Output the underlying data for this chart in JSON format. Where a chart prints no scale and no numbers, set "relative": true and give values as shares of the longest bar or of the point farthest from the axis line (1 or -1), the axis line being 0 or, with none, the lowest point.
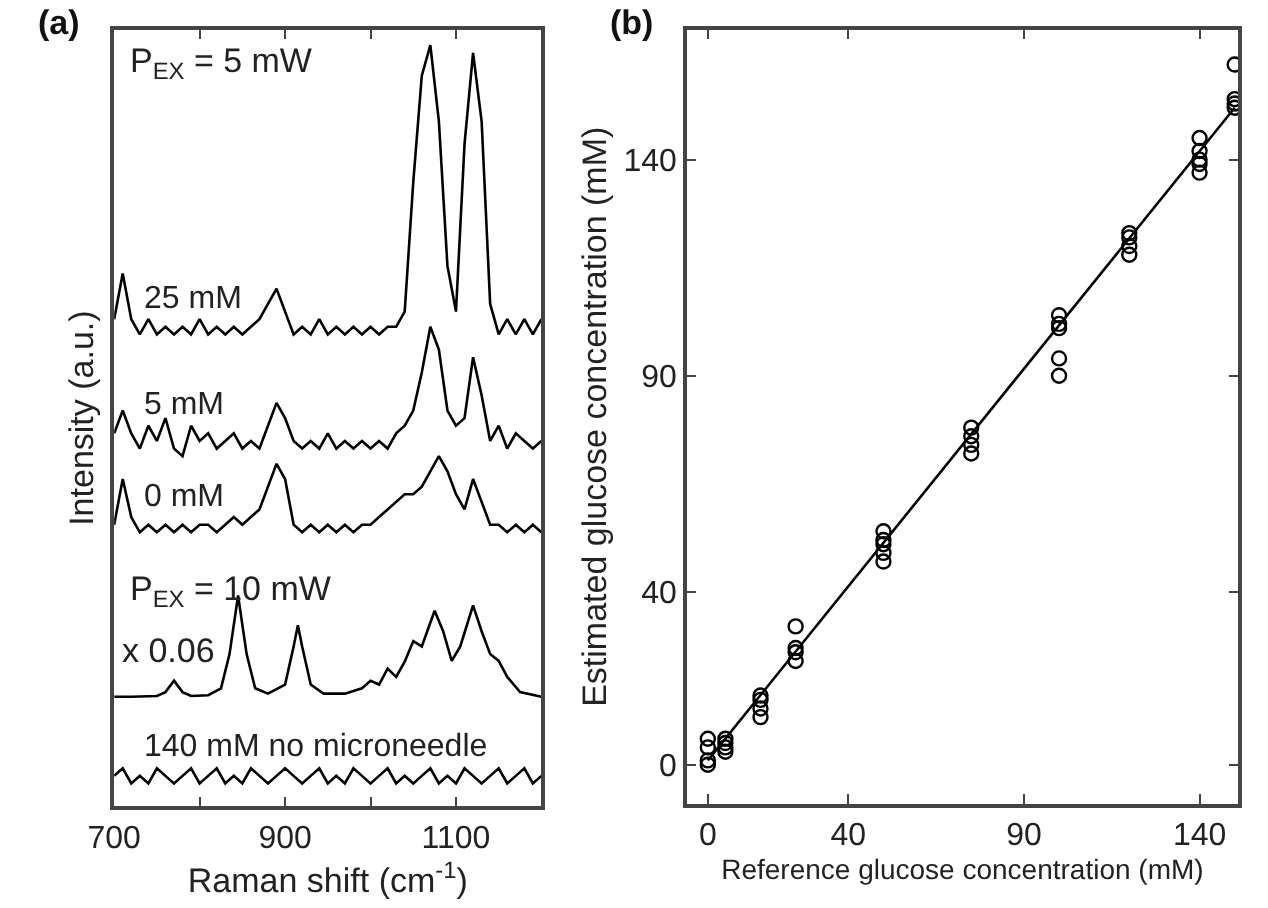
{
  "chart_data": [
    {
      "type": "line",
      "title": "(a)",
      "xlabel": "Raman shift (cm$^{-1}$)",
      "ylabel": "Intensity (a.u.)",
      "relative": true,
      "x": [
        700,
        710,
        720,
        730,
        740,
        750,
        760,
        770,
        780,
        790,
        800,
        810,
        820,
        830,
        840,
        850,
        860,
        870,
        880,
        890,
        900,
        910,
        920,
        930,
        940,
        950,
        960,
        970,
        980,
        990,
        1000,
        1010,
        1020,
        1030,
        1040,
        1050,
        1060,
        1070,
        1080,
        1090,
        1100,
        1110,
        1120,
        1130,
        1140,
        1150,
        1160,
        1170,
        1180,
        1190,
        1200
      ],
      "xlim": [
        700,
        1200
      ],
      "xticks": [
        700,
        {
          "value": 800,
          "label": null
        },
        900,
        {
          "value": 1000,
          "label": null
        },
        1100
      ],
      "marker": "none",
      "line_style": "solid",
      "annotations": [
        "P$_{EX}$ = 5 mW",
        "P$_{EX}$ = 10 mW",
        "x 0.06"
      ],
      "series": [
        {
          "name": "25 mM",
          "color": "#000000",
          "values": [
            0.64,
            0.7,
            0.64,
            0.62,
            0.64,
            0.62,
            0.63,
            0.62,
            0.63,
            0.62,
            0.64,
            0.62,
            0.63,
            0.62,
            0.63,
            0.62,
            0.63,
            0.64,
            0.66,
            0.68,
            0.65,
            0.62,
            0.63,
            0.62,
            0.64,
            0.62,
            0.63,
            0.62,
            0.63,
            0.62,
            0.63,
            0.62,
            0.63,
            0.63,
            0.65,
            0.82,
            0.96,
            1.0,
            0.9,
            0.71,
            0.65,
            0.87,
            0.99,
            0.9,
            0.66,
            0.62,
            0.64,
            0.62,
            0.64,
            0.62,
            0.64
          ]
        },
        {
          "name": "5 mM",
          "color": "#000000",
          "values": [
            0.49,
            0.52,
            0.49,
            0.47,
            0.5,
            0.48,
            0.51,
            0.47,
            0.46,
            0.5,
            0.48,
            0.49,
            0.47,
            0.48,
            0.49,
            0.47,
            0.48,
            0.47,
            0.5,
            0.53,
            0.51,
            0.48,
            0.47,
            0.48,
            0.47,
            0.49,
            0.47,
            0.48,
            0.47,
            0.48,
            0.47,
            0.48,
            0.47,
            0.49,
            0.5,
            0.52,
            0.57,
            0.63,
            0.6,
            0.52,
            0.5,
            0.51,
            0.59,
            0.54,
            0.48,
            0.5,
            0.47,
            0.49,
            0.48,
            0.47,
            0.48
          ]
        },
        {
          "name": "0 mM",
          "color": "#000000",
          "values": [
            0.37,
            0.43,
            0.38,
            0.36,
            0.37,
            0.36,
            0.37,
            0.36,
            0.37,
            0.36,
            0.37,
            0.37,
            0.36,
            0.37,
            0.38,
            0.37,
            0.38,
            0.39,
            0.42,
            0.45,
            0.43,
            0.37,
            0.36,
            0.37,
            0.36,
            0.37,
            0.36,
            0.37,
            0.36,
            0.37,
            0.37,
            0.38,
            0.39,
            0.4,
            0.41,
            0.41,
            0.42,
            0.44,
            0.46,
            0.44,
            0.41,
            0.39,
            0.43,
            0.4,
            0.37,
            0.37,
            0.36,
            0.37,
            0.36,
            0.37,
            0.36
          ]
        },
        {
          "color": "#000000",
          "x": [
            700,
            720,
            750,
            760,
            770,
            780,
            790,
            810,
            825,
            835,
            845,
            855,
            865,
            880,
            900,
            910,
            915,
            920,
            930,
            945,
            970,
            990,
            1000,
            1010,
            1020,
            1030,
            1040,
            1050,
            1060,
            1075,
            1085,
            1095,
            1105,
            1120,
            1130,
            1140,
            1150,
            1160,
            1175,
            1200
          ],
          "values": [
            0.144,
            0.144,
            0.145,
            0.15,
            0.165,
            0.15,
            0.145,
            0.146,
            0.155,
            0.2,
            0.277,
            0.2,
            0.155,
            0.148,
            0.16,
            0.21,
            0.238,
            0.21,
            0.16,
            0.148,
            0.148,
            0.155,
            0.165,
            0.16,
            0.181,
            0.17,
            0.19,
            0.217,
            0.21,
            0.257,
            0.23,
            0.191,
            0.21,
            0.264,
            0.23,
            0.2,
            0.191,
            0.17,
            0.15,
            0.144
          ]
        },
        {
          "name": "140 mM no microneedle",
          "color": "#000000",
          "values": [
            0.04,
            0.05,
            0.03,
            0.04,
            0.03,
            0.05,
            0.04,
            0.03,
            0.04,
            0.05,
            0.03,
            0.04,
            0.05,
            0.03,
            0.04,
            0.03,
            0.05,
            0.04,
            0.03,
            0.04,
            0.05,
            0.04,
            0.03,
            0.04,
            0.05,
            0.03,
            0.04,
            0.03,
            0.05,
            0.04,
            0.03,
            0.04,
            0.05,
            0.03,
            0.04,
            0.03,
            0.04,
            0.05,
            0.03,
            0.04,
            0.03,
            0.05,
            0.04,
            0.03,
            0.04,
            0.05,
            0.03,
            0.04,
            0.05,
            0.03,
            0.04
          ]
        }
      ]
    },
    {
      "type": "scatter",
      "title": "(b)",
      "xlabel": "Reference glucose concentration (mM)",
      "ylabel": "Estimated glucose concentration (mM)",
      "xlim": [
        -6,
        151
      ],
      "xticks": [
        0,
        40,
        90,
        140
      ],
      "ylim": [
        -9,
        170
      ],
      "yticks": [
        0,
        40,
        90,
        140
      ],
      "marker": "circle",
      "series": [
        {
          "color": "#000000",
          "x": [
            0,
            0,
            0,
            0,
            5,
            5,
            5,
            5,
            15,
            15,
            15,
            15,
            25,
            25,
            25,
            25,
            50,
            50,
            50,
            50,
            50,
            75,
            75,
            75,
            75,
            100,
            100,
            100,
            100,
            100,
            120,
            120,
            120,
            120,
            140,
            140,
            140,
            140,
            140,
            150,
            150,
            150,
            150
          ],
          "values": [
            6,
            4,
            1,
            0,
            6,
            5,
            4,
            3,
            16,
            15,
            13,
            11,
            32,
            27,
            26,
            24,
            54,
            52,
            51,
            49,
            47,
            78,
            76,
            74,
            72,
            104,
            102,
            101,
            94,
            90,
            123,
            122,
            120,
            118,
            145,
            142,
            140,
            139,
            137,
            162,
            154,
            153,
            152
          ]
        },
        {
          "type": "line",
          "color": "#000000",
          "marker": "none",
          "line_style": "solid",
          "x": [
            0,
            150
          ],
          "values": [
            1,
            152
          ]
        }
      ]
    }
  ]
}
